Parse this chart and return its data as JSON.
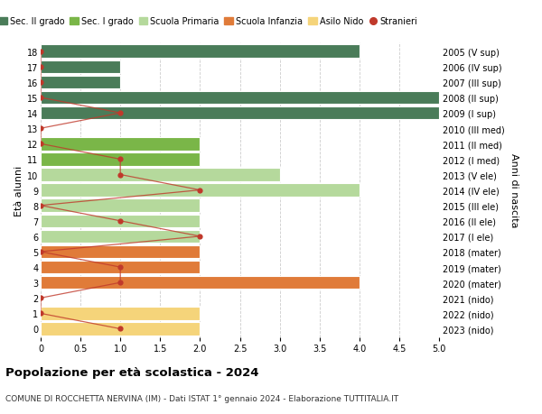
{
  "ages": [
    18,
    17,
    16,
    15,
    14,
    13,
    12,
    11,
    10,
    9,
    8,
    7,
    6,
    5,
    4,
    3,
    2,
    1,
    0
  ],
  "right_labels": [
    "2005 (V sup)",
    "2006 (IV sup)",
    "2007 (III sup)",
    "2008 (II sup)",
    "2009 (I sup)",
    "2010 (III med)",
    "2011 (II med)",
    "2012 (I med)",
    "2013 (V ele)",
    "2014 (IV ele)",
    "2015 (III ele)",
    "2016 (II ele)",
    "2017 (I ele)",
    "2018 (mater)",
    "2019 (mater)",
    "2020 (mater)",
    "2021 (nido)",
    "2022 (nido)",
    "2023 (nido)"
  ],
  "bar_values": [
    4,
    1,
    1,
    5,
    5,
    0,
    2,
    2,
    3,
    4,
    2,
    2,
    2,
    2,
    2,
    4,
    0,
    2,
    2
  ],
  "bar_colors": [
    "#4a7c59",
    "#4a7c59",
    "#4a7c59",
    "#4a7c59",
    "#4a7c59",
    "#7ab648",
    "#7ab648",
    "#7ab648",
    "#b5d99c",
    "#b5d99c",
    "#b5d99c",
    "#b5d99c",
    "#b5d99c",
    "#e07b39",
    "#e07b39",
    "#e07b39",
    "#f5d47a",
    "#f5d47a",
    "#f5d47a"
  ],
  "stranieri_values": [
    0,
    0,
    0,
    0,
    1,
    0,
    0,
    1,
    1,
    2,
    0,
    1,
    2,
    0,
    1,
    1,
    0,
    0,
    1
  ],
  "legend_labels": [
    "Sec. II grado",
    "Sec. I grado",
    "Scuola Primaria",
    "Scuola Infanzia",
    "Asilo Nido",
    "Stranieri"
  ],
  "legend_colors": [
    "#4a7c59",
    "#7ab648",
    "#b5d99c",
    "#e07b39",
    "#f5d47a",
    "#c0392b"
  ],
  "title": "Popolazione per età scolastica - 2024",
  "subtitle": "COMUNE DI ROCCHETTA NERVINA (IM) - Dati ISTAT 1° gennaio 2024 - Elaborazione TUTTITALIA.IT",
  "ylabel_left": "Età alunni",
  "ylabel_right": "Anni di nascita",
  "xlim": [
    0,
    5.0
  ],
  "xticks": [
    0,
    0.5,
    1.0,
    1.5,
    2.0,
    2.5,
    3.0,
    3.5,
    4.0,
    4.5,
    5.0
  ],
  "bg_color": "#ffffff",
  "grid_color": "#cccccc",
  "stranieri_color": "#c0392b"
}
